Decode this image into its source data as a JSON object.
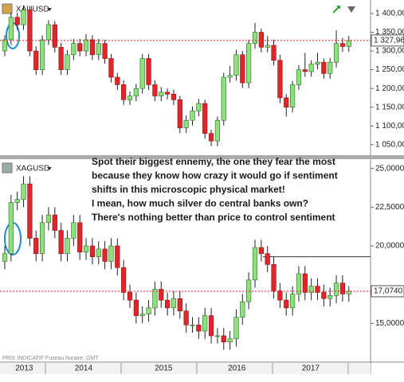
{
  "chart_data": [
    {
      "type": "candlestick",
      "title": "XAUUSD",
      "open": [
        1300,
        1330,
        1390,
        1370,
        1410,
        1300,
        1250,
        1330,
        1370,
        1310,
        1250,
        1290,
        1320,
        1300,
        1330,
        1290,
        1320,
        1280,
        1230,
        1210,
        1170,
        1180,
        1200,
        1280,
        1210,
        1180,
        1190,
        1185,
        1170,
        1095,
        1115,
        1140,
        1160,
        1080,
        1060,
        1115,
        1230,
        1235,
        1290,
        1215,
        1320,
        1350,
        1310,
        1315,
        1275,
        1175,
        1150,
        1210,
        1250,
        1245,
        1265,
        1270,
        1240,
        1270,
        1320,
        1312
      ],
      "high": [
        1342,
        1402,
        1402,
        1422,
        1420,
        1312,
        1342,
        1382,
        1380,
        1322,
        1302,
        1332,
        1332,
        1345,
        1342,
        1332,
        1330,
        1292,
        1242,
        1222,
        1192,
        1212,
        1292,
        1292,
        1222,
        1204,
        1200,
        1197,
        1180,
        1128,
        1152,
        1172,
        1170,
        1090,
        1125,
        1242,
        1260,
        1303,
        1300,
        1330,
        1375,
        1360,
        1340,
        1330,
        1290,
        1185,
        1220,
        1262,
        1295,
        1275,
        1295,
        1280,
        1282,
        1355,
        1335,
        1340
      ],
      "low": [
        1286,
        1316,
        1356,
        1356,
        1286,
        1236,
        1236,
        1316,
        1296,
        1236,
        1236,
        1276,
        1286,
        1286,
        1276,
        1276,
        1266,
        1216,
        1196,
        1156,
        1156,
        1166,
        1186,
        1196,
        1166,
        1166,
        1171,
        1156,
        1081,
        1081,
        1101,
        1126,
        1066,
        1046,
        1046,
        1101,
        1216,
        1221,
        1201,
        1201,
        1306,
        1296,
        1296,
        1261,
        1161,
        1125,
        1136,
        1196,
        1231,
        1231,
        1251,
        1226,
        1226,
        1256,
        1298,
        1298
      ],
      "close": [
        1330,
        1390,
        1370,
        1410,
        1300,
        1250,
        1330,
        1370,
        1310,
        1250,
        1290,
        1320,
        1300,
        1330,
        1290,
        1320,
        1280,
        1230,
        1210,
        1170,
        1180,
        1200,
        1280,
        1210,
        1180,
        1190,
        1185,
        1170,
        1095,
        1115,
        1140,
        1160,
        1080,
        1060,
        1115,
        1230,
        1235,
        1290,
        1215,
        1320,
        1350,
        1310,
        1315,
        1275,
        1175,
        1150,
        1210,
        1250,
        1245,
        1265,
        1270,
        1240,
        1270,
        1320,
        1312,
        1327.96
      ],
      "up_color": "#8ee07a",
      "down_color": "#e0262b",
      "ylim": [
        1022,
        1436
      ],
      "yticks": [
        {
          "value": 1050,
          "label": "1 050,00"
        },
        {
          "value": 1100,
          "label": "1 100,00"
        },
        {
          "value": 1150,
          "label": "1 150,00"
        },
        {
          "value": 1200,
          "label": "1 200,00"
        },
        {
          "value": 1250,
          "label": "1 250,00"
        },
        {
          "value": 1300,
          "label": "1 300,00"
        },
        {
          "value": 1350,
          "label": "1 350,00"
        },
        {
          "value": 1400,
          "label": "1 400,00"
        }
      ],
      "last_price": {
        "value": 1327.96,
        "label": "1 327,96"
      }
    },
    {
      "type": "candlestick",
      "title": "XAGUSD",
      "annotation": [
        "Spot their biggest ennemy, the one they fear the most",
        "because they know how crazy it would go if sentiment",
        "shifts in this microscopic physical market!",
        "I mean, how much silver do central banks own?",
        "There's nothing better than price to control sentiment"
      ],
      "open": [
        19.0,
        19.5,
        22.8,
        23.0,
        24.0,
        20.5,
        19.5,
        21.5,
        22.0,
        21.0,
        19.5,
        20.5,
        21.5,
        19.6,
        20.0,
        19.3,
        19.8,
        19.0,
        20.0,
        18.6,
        17.0,
        16.5,
        15.5,
        15.6,
        16.0,
        17.2,
        16.5,
        16.0,
        16.6,
        15.8,
        14.9,
        14.9,
        14.5,
        15.5,
        14.2,
        14.2,
        13.8,
        14.0,
        15.4,
        16.4,
        17.8,
        19.9,
        19.5,
        18.8,
        17.1,
        16.5,
        16.0,
        16.9,
        18.2,
        17.0,
        17.4,
        17.0,
        16.6,
        16.8,
        17.6,
        16.9
      ],
      "high": [
        20.0,
        23.3,
        23.5,
        24.5,
        24.5,
        21.0,
        22.0,
        22.5,
        22.5,
        21.5,
        21.0,
        22.0,
        22.0,
        20.5,
        20.5,
        20.3,
        20.3,
        20.5,
        20.5,
        19.1,
        17.5,
        17.0,
        16.1,
        16.5,
        17.7,
        17.7,
        17.0,
        17.1,
        17.1,
        16.3,
        15.4,
        15.4,
        16.0,
        16.0,
        14.7,
        14.7,
        14.5,
        15.9,
        16.9,
        18.3,
        20.4,
        20.4,
        20.0,
        19.3,
        17.6,
        17.0,
        17.4,
        18.7,
        18.7,
        17.9,
        17.9,
        17.5,
        17.3,
        18.1,
        18.1,
        17.4
      ],
      "low": [
        18.5,
        19.0,
        22.3,
        22.5,
        20.0,
        19.0,
        19.0,
        21.0,
        20.5,
        19.0,
        19.0,
        20.0,
        19.1,
        19.1,
        18.8,
        18.8,
        18.5,
        18.5,
        18.1,
        16.5,
        16.0,
        15.0,
        15.0,
        15.1,
        15.5,
        16.0,
        15.5,
        15.5,
        15.3,
        14.4,
        14.4,
        14.0,
        14.0,
        13.7,
        13.7,
        13.3,
        13.3,
        13.5,
        14.9,
        15.9,
        17.3,
        19.0,
        18.3,
        16.6,
        16.0,
        15.5,
        15.5,
        16.4,
        16.5,
        16.5,
        16.5,
        16.1,
        16.1,
        16.3,
        16.4,
        16.4
      ],
      "close": [
        19.5,
        22.8,
        23.0,
        24.0,
        20.5,
        19.5,
        21.5,
        22.0,
        21.0,
        19.5,
        20.5,
        21.5,
        19.6,
        20.0,
        19.3,
        19.8,
        19.0,
        20.0,
        18.6,
        17.0,
        16.5,
        15.5,
        15.6,
        16.0,
        17.2,
        16.5,
        16.0,
        16.6,
        15.8,
        14.9,
        14.9,
        14.5,
        15.5,
        14.2,
        14.2,
        13.8,
        14.0,
        15.4,
        16.4,
        17.8,
        19.9,
        19.5,
        18.8,
        17.1,
        16.5,
        16.0,
        16.9,
        18.2,
        17.0,
        17.4,
        17.0,
        16.6,
        16.8,
        17.6,
        16.9,
        17.074
      ],
      "up_color": "#8ee07a",
      "down_color": "#e0262b",
      "ylim": [
        12.5,
        25.6
      ],
      "yticks": [
        {
          "value": 15,
          "label": "15,0000"
        },
        {
          "value": 20,
          "label": "20,0000"
        },
        {
          "value": 22.5,
          "label": "22,5000"
        },
        {
          "value": 25,
          "label": "25,0000"
        }
      ],
      "resistance_line": 19.3,
      "last_price": {
        "value": 17.074,
        "label": "17,0740"
      },
      "footer": "PRIX INDICATIF   Fuseau horaire: GMT",
      "xticks": [
        {
          "value": 3.1,
          "label": "2013"
        },
        {
          "value": 12.6,
          "label": "2014"
        },
        {
          "value": 25.4,
          "label": "2015"
        },
        {
          "value": 37.1,
          "label": "2016"
        },
        {
          "value": 48.9,
          "label": "2017"
        }
      ]
    }
  ]
}
